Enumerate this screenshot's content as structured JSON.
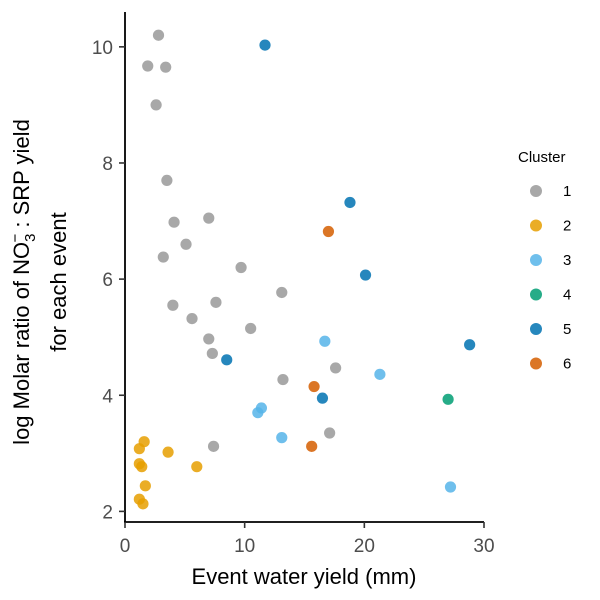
{
  "chart_data": {
    "type": "scatter",
    "xlabel": "Event water yield (mm)",
    "ylabel": {
      "line1_prefix": "log Molar ratio of NO",
      "line1_sub": "3",
      "line1_sup": "−",
      "line1_suffix": " : SRP yield",
      "line2": "for each event"
    },
    "xlim": [
      0,
      30
    ],
    "ylim": [
      1.8,
      10.6
    ],
    "x_ticks": [
      0,
      10,
      20,
      30
    ],
    "y_ticks": [
      2,
      4,
      6,
      8,
      10
    ],
    "grid": false,
    "legend": {
      "title": "Cluster",
      "placement": "right"
    },
    "series": [
      {
        "name": "1",
        "color": "#999999",
        "points": [
          [
            2.8,
            10.2
          ],
          [
            1.9,
            9.67
          ],
          [
            3.4,
            9.65
          ],
          [
            2.6,
            9.0
          ],
          [
            3.5,
            7.7
          ],
          [
            4.1,
            6.98
          ],
          [
            7.0,
            7.05
          ],
          [
            5.1,
            6.6
          ],
          [
            3.2,
            6.38
          ],
          [
            9.7,
            6.2
          ],
          [
            4.0,
            5.55
          ],
          [
            7.6,
            5.6
          ],
          [
            13.1,
            5.77
          ],
          [
            5.6,
            5.32
          ],
          [
            10.5,
            5.15
          ],
          [
            7.0,
            4.97
          ],
          [
            7.3,
            4.72
          ],
          [
            17.6,
            4.47
          ],
          [
            13.2,
            4.27
          ],
          [
            7.4,
            3.12
          ],
          [
            17.1,
            3.35
          ]
        ]
      },
      {
        "name": "2",
        "color": "#E69F00",
        "points": [
          [
            1.6,
            3.2
          ],
          [
            1.2,
            3.08
          ],
          [
            3.6,
            3.02
          ],
          [
            1.2,
            2.82
          ],
          [
            1.4,
            2.77
          ],
          [
            6.0,
            2.77
          ],
          [
            1.7,
            2.44
          ],
          [
            1.2,
            2.21
          ],
          [
            1.5,
            2.13
          ]
        ]
      },
      {
        "name": "3",
        "color": "#56B4E9",
        "points": [
          [
            16.7,
            4.93
          ],
          [
            21.3,
            4.36
          ],
          [
            11.4,
            3.78
          ],
          [
            11.1,
            3.7
          ],
          [
            13.1,
            3.27
          ],
          [
            27.2,
            2.42
          ]
        ]
      },
      {
        "name": "4",
        "color": "#009E73",
        "points": [
          [
            27.0,
            3.93
          ]
        ]
      },
      {
        "name": "5",
        "color": "#0072B2",
        "points": [
          [
            11.7,
            10.03
          ],
          [
            18.8,
            7.32
          ],
          [
            20.1,
            6.07
          ],
          [
            28.8,
            4.87
          ],
          [
            8.5,
            4.61
          ],
          [
            16.5,
            3.95
          ]
        ]
      },
      {
        "name": "6",
        "color": "#D55E00",
        "points": [
          [
            17.0,
            6.82
          ],
          [
            15.8,
            4.15
          ],
          [
            15.6,
            3.12
          ]
        ]
      }
    ]
  }
}
